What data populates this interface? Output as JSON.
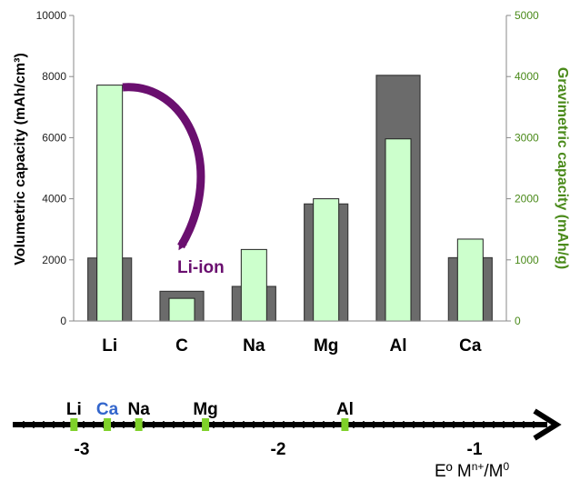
{
  "chart_data": [
    {
      "type": "bar",
      "categories": [
        "Li",
        "C",
        "Na",
        "Mg",
        "Al",
        "Ca"
      ],
      "series": [
        {
          "name": "Volumetric capacity (mAh/cm³)",
          "axis": "left",
          "color": "#6b6b6b",
          "values": [
            2060,
            970,
            1130,
            3830,
            8040,
            2070
          ]
        },
        {
          "name": "Gravimetric capacity (mAh/g)",
          "axis": "right",
          "color": "#ccffcc",
          "values": [
            3860,
            370,
            1170,
            2000,
            2980,
            1340
          ]
        }
      ],
      "ylabel": "Volumetric capacity (mAh/cm³)",
      "ylabel_right": "Gravimetric capacity (mAh/g)",
      "ylim": [
        0,
        10000
      ],
      "ylim_right": [
        0,
        5000
      ],
      "yticks": [
        "0",
        "2000",
        "4000",
        "6000",
        "8000",
        "10000"
      ],
      "yticks_right": [
        "0",
        "1000",
        "2000",
        "3000",
        "4000",
        "5000"
      ],
      "grid": false,
      "annotation": {
        "text": "Li-ion",
        "color": "#6a0f6f",
        "arrow_from": "Li",
        "arrow_to": "C"
      }
    },
    {
      "type": "number-line",
      "xlabel_base": "Eº M",
      "xlabel_sup1": "n+",
      "xlabel_mid": "/M",
      "xlabel_sup2": "0",
      "xlim": [
        -3.1,
        -0.6
      ],
      "ticks": [
        {
          "label": "-3",
          "value": -3
        },
        {
          "label": "-2",
          "value": -2
        },
        {
          "label": "-1",
          "value": -1
        }
      ],
      "points": [
        {
          "label": "Li",
          "value": -3.04,
          "color": "#000000"
        },
        {
          "label": "Ca",
          "value": -2.87,
          "color": "#3366cc"
        },
        {
          "label": "Na",
          "value": -2.71,
          "color": "#000000"
        },
        {
          "label": "Mg",
          "value": -2.37,
          "color": "#000000"
        },
        {
          "label": "Al",
          "value": -1.66,
          "color": "#000000"
        }
      ],
      "marker_color": "#7fd12a"
    }
  ]
}
